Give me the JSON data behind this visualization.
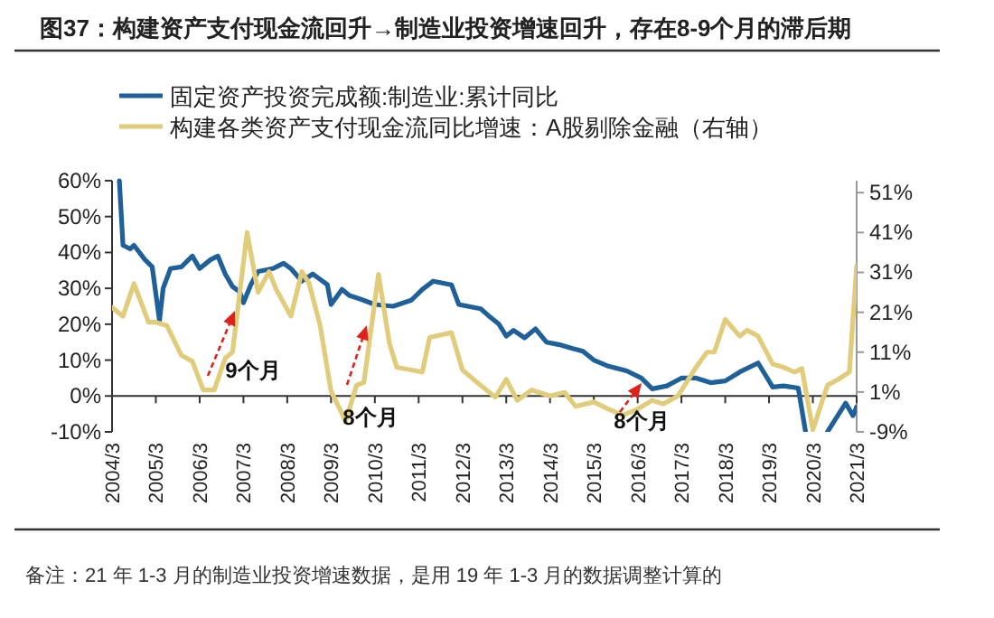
{
  "chart_data": {
    "type": "line",
    "title": "图37：构建资产支付现金流回升→制造业投资增速回升，存在8-9个月的滞后期",
    "legend": "top",
    "marker": "none",
    "line_style": "solid",
    "xlim": [
      "2004-03",
      "2021-03"
    ],
    "xticks": [
      {
        "value": "2004-03",
        "label": "2004/3"
      },
      {
        "value": "2005-03",
        "label": "2005/3"
      },
      {
        "value": "2006-03",
        "label": "2006/3"
      },
      {
        "value": "2007-03",
        "label": "2007/3"
      },
      {
        "value": "2008-03",
        "label": "2008/3"
      },
      {
        "value": "2009-03",
        "label": "2009/3"
      },
      {
        "value": "2010-03",
        "label": "2010/3"
      },
      {
        "value": "2011-03",
        "label": "2011/3"
      },
      {
        "value": "2012-03",
        "label": "2012/3"
      },
      {
        "value": "2013-03",
        "label": "2013/3"
      },
      {
        "value": "2014-03",
        "label": "2014/3"
      },
      {
        "value": "2015-03",
        "label": "2015/3"
      },
      {
        "value": "2016-03",
        "label": "2016/3"
      },
      {
        "value": "2017-03",
        "label": "2017/3"
      },
      {
        "value": "2018-03",
        "label": "2018/3"
      },
      {
        "value": "2019-03",
        "label": "2019/3"
      },
      {
        "value": "2020-03",
        "label": "2020/3"
      },
      {
        "value": "2021-03",
        "label": "2021/3"
      }
    ],
    "ylim": [
      -10,
      60
    ],
    "yticks": [
      {
        "value": -10,
        "label": "-10%"
      },
      {
        "value": 0,
        "label": "0%"
      },
      {
        "value": 10,
        "label": "10%"
      },
      {
        "value": 20,
        "label": "20%"
      },
      {
        "value": 30,
        "label": "30%"
      },
      {
        "value": 40,
        "label": "40%"
      },
      {
        "value": 50,
        "label": "50%"
      },
      {
        "value": 60,
        "label": "60%"
      }
    ],
    "y2lim": [
      -9,
      54
    ],
    "y2ticks": [
      {
        "value": -9,
        "label": "-9%"
      },
      {
        "value": 1,
        "label": "1%"
      },
      {
        "value": 11,
        "label": "11%"
      },
      {
        "value": 21,
        "label": "21%"
      },
      {
        "value": 31,
        "label": "31%"
      },
      {
        "value": 41,
        "label": "41%"
      },
      {
        "value": 51,
        "label": "51%"
      }
    ],
    "series": [
      {
        "name": "固定资产投资完成额:制造业:累计同比",
        "color": "#1f5f9a",
        "x": [
          "2004-05",
          "2004-06",
          "2004-08",
          "2004-09",
          "2004-12",
          "2005-02",
          "2005-04",
          "2005-05",
          "2005-07",
          "2005-10",
          "2006-01",
          "2006-03",
          "2006-06",
          "2006-08",
          "2006-10",
          "2006-12",
          "2007-02",
          "2007-03",
          "2007-05",
          "2007-07",
          "2007-11",
          "2008-02",
          "2008-04",
          "2008-07",
          "2008-10",
          "2009-02",
          "2009-03",
          "2009-06",
          "2009-08",
          "2009-11",
          "2010-03",
          "2010-08",
          "2011-01",
          "2011-04",
          "2011-07",
          "2011-12",
          "2012-02",
          "2012-08",
          "2012-10",
          "2013-01",
          "2013-03",
          "2013-05",
          "2013-08",
          "2013-11",
          "2014-02",
          "2014-06",
          "2014-09",
          "2014-12",
          "2015-03",
          "2015-07",
          "2015-12",
          "2016-04",
          "2016-07",
          "2016-11",
          "2017-03",
          "2017-07",
          "2017-11",
          "2018-03",
          "2018-07",
          "2018-12",
          "2019-04",
          "2019-07",
          "2019-11",
          "2020-01",
          "2020-03",
          "2020-07",
          "2020-12",
          "2021-02",
          "2021-03"
        ],
        "values": [
          60,
          42,
          41,
          42,
          38,
          36,
          21,
          30,
          35.5,
          36,
          39,
          35.5,
          38,
          39,
          34,
          30.5,
          29,
          26,
          31,
          34.7,
          35.5,
          37,
          35.5,
          32,
          34,
          31,
          25.5,
          29.7,
          28,
          27,
          25.5,
          25,
          26.7,
          29.7,
          32,
          31,
          25.5,
          24.3,
          22.5,
          20,
          16.7,
          18.3,
          16.2,
          18.7,
          15,
          14.2,
          13.3,
          12.5,
          10,
          8.3,
          7,
          5,
          2,
          2.8,
          5,
          5,
          3.7,
          4.2,
          6.7,
          9.2,
          2.5,
          2.8,
          2.2,
          -10,
          null,
          -10,
          -2,
          -5.5,
          -3
        ]
      },
      {
        "name": "构建各类资产支付现金流同比增速：A股剔除金融（右轴）",
        "color": "#e0cc7a",
        "axis": "y2",
        "x": [
          "2004-03",
          "2004-06",
          "2004-09",
          "2005-01",
          "2005-03",
          "2005-06",
          "2005-10",
          "2006-01",
          "2006-04",
          "2006-07",
          "2006-10",
          "2006-12",
          "2007-04",
          "2007-07",
          "2007-10",
          "2007-12",
          "2008-04",
          "2008-07",
          "2008-09",
          "2008-12",
          "2009-03",
          "2009-07",
          "2009-10",
          "2009-12",
          "2010-04",
          "2010-07",
          "2010-09",
          "2011-04",
          "2011-06",
          "2011-12",
          "2012-03",
          "2012-07",
          "2012-12",
          "2013-03",
          "2013-06",
          "2013-10",
          "2014-03",
          "2014-07",
          "2014-10",
          "2015-03",
          "2015-07",
          "2015-11",
          "2016-03",
          "2016-07",
          "2016-10",
          "2017-02",
          "2017-07",
          "2017-10",
          "2017-12",
          "2018-03",
          "2018-07",
          "2018-09",
          "2018-12",
          "2019-04",
          "2019-07",
          "2019-10",
          "2019-12",
          "2020-03",
          "2020-07",
          "2020-10",
          "2021-01",
          "2021-03"
        ],
        "values": [
          22.2,
          20,
          28.2,
          18.5,
          18.5,
          17.7,
          10.2,
          8.7,
          1.5,
          1.5,
          9.5,
          11,
          41,
          26,
          31.2,
          26.7,
          20,
          31.2,
          28.2,
          17.7,
          1.2,
          -6.3,
          2.7,
          3.4,
          30.5,
          13.2,
          7.2,
          6,
          14.7,
          15.9,
          6.5,
          3.4,
          -0.3,
          4.2,
          -1.1,
          1.5,
          0,
          0.9,
          -2.6,
          -1.5,
          -3.3,
          -4.8,
          -3.3,
          -1.1,
          -2,
          0,
          7.2,
          11,
          11,
          19.2,
          15,
          16.5,
          15,
          8,
          7.2,
          6,
          6.9,
          -8.5,
          2.7,
          4.2,
          6,
          32.7
        ]
      }
    ],
    "annotations": [
      "9个月",
      "8个月",
      "8个月",
      "备注：21 年 1-3 月的制造业投资增速数据，是用 19 年 1-3 月的数据调整计算的"
    ]
  }
}
